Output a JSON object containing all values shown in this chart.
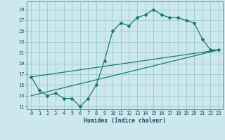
{
  "xlabel": "Humidex (Indice chaleur)",
  "bg_color": "#cce8ed",
  "grid_color": "#99c8d0",
  "line_color": "#1a7a6e",
  "xlim": [
    -0.5,
    23.5
  ],
  "ylim": [
    10.5,
    30.5
  ],
  "xtick_vals": [
    0,
    1,
    2,
    3,
    4,
    5,
    6,
    7,
    8,
    9,
    10,
    11,
    12,
    13,
    14,
    15,
    16,
    17,
    18,
    19,
    20,
    21,
    22,
    23
  ],
  "ytick_vals": [
    11,
    13,
    15,
    17,
    19,
    21,
    23,
    25,
    27,
    29
  ],
  "curve1_x": [
    0,
    1,
    2,
    3,
    4,
    5,
    6,
    7,
    8,
    9,
    10,
    11,
    12,
    13,
    14,
    15,
    16,
    17,
    18,
    19,
    20,
    21,
    22,
    23
  ],
  "curve1_y": [
    16.5,
    14.0,
    13.0,
    13.5,
    12.5,
    12.5,
    11.0,
    12.5,
    15.0,
    19.5,
    25.0,
    26.5,
    26.0,
    27.5,
    28.0,
    29.0,
    28.0,
    27.5,
    27.5,
    27.0,
    26.5,
    23.5,
    21.5,
    21.5
  ],
  "curve2_x": [
    0,
    23
  ],
  "curve2_y": [
    13.0,
    21.5
  ],
  "curve3_x": [
    0,
    23
  ],
  "curve3_y": [
    16.5,
    21.5
  ],
  "xlabel_fontsize": 5.8,
  "tick_fontsize": 5.0
}
